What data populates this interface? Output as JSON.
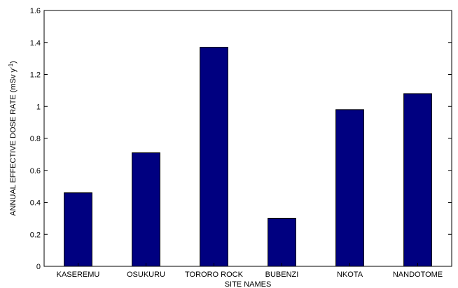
{
  "chart_data": {
    "type": "bar",
    "categories": [
      "KASEREMU",
      "OSUKURU",
      "TORORO ROCK",
      "BUBENZI",
      "NKOTA",
      "NANDOTOME"
    ],
    "values": [
      0.46,
      0.71,
      1.37,
      0.3,
      0.98,
      1.08
    ],
    "title": "",
    "xlabel": "SITE NAMES",
    "ylabel": "ANNUAL EFFECTIVE DOSE RATE (mSv y",
    "ylabel_superscript": "-1",
    "ylabel_suffix": ")",
    "ylim": [
      0,
      1.6
    ],
    "yticks": [
      "0",
      "0.2",
      "0.4",
      "0.6",
      "0.8",
      "1",
      "1.2",
      "1.4",
      "1.6"
    ],
    "bar_color": "#000080",
    "grid": false
  }
}
